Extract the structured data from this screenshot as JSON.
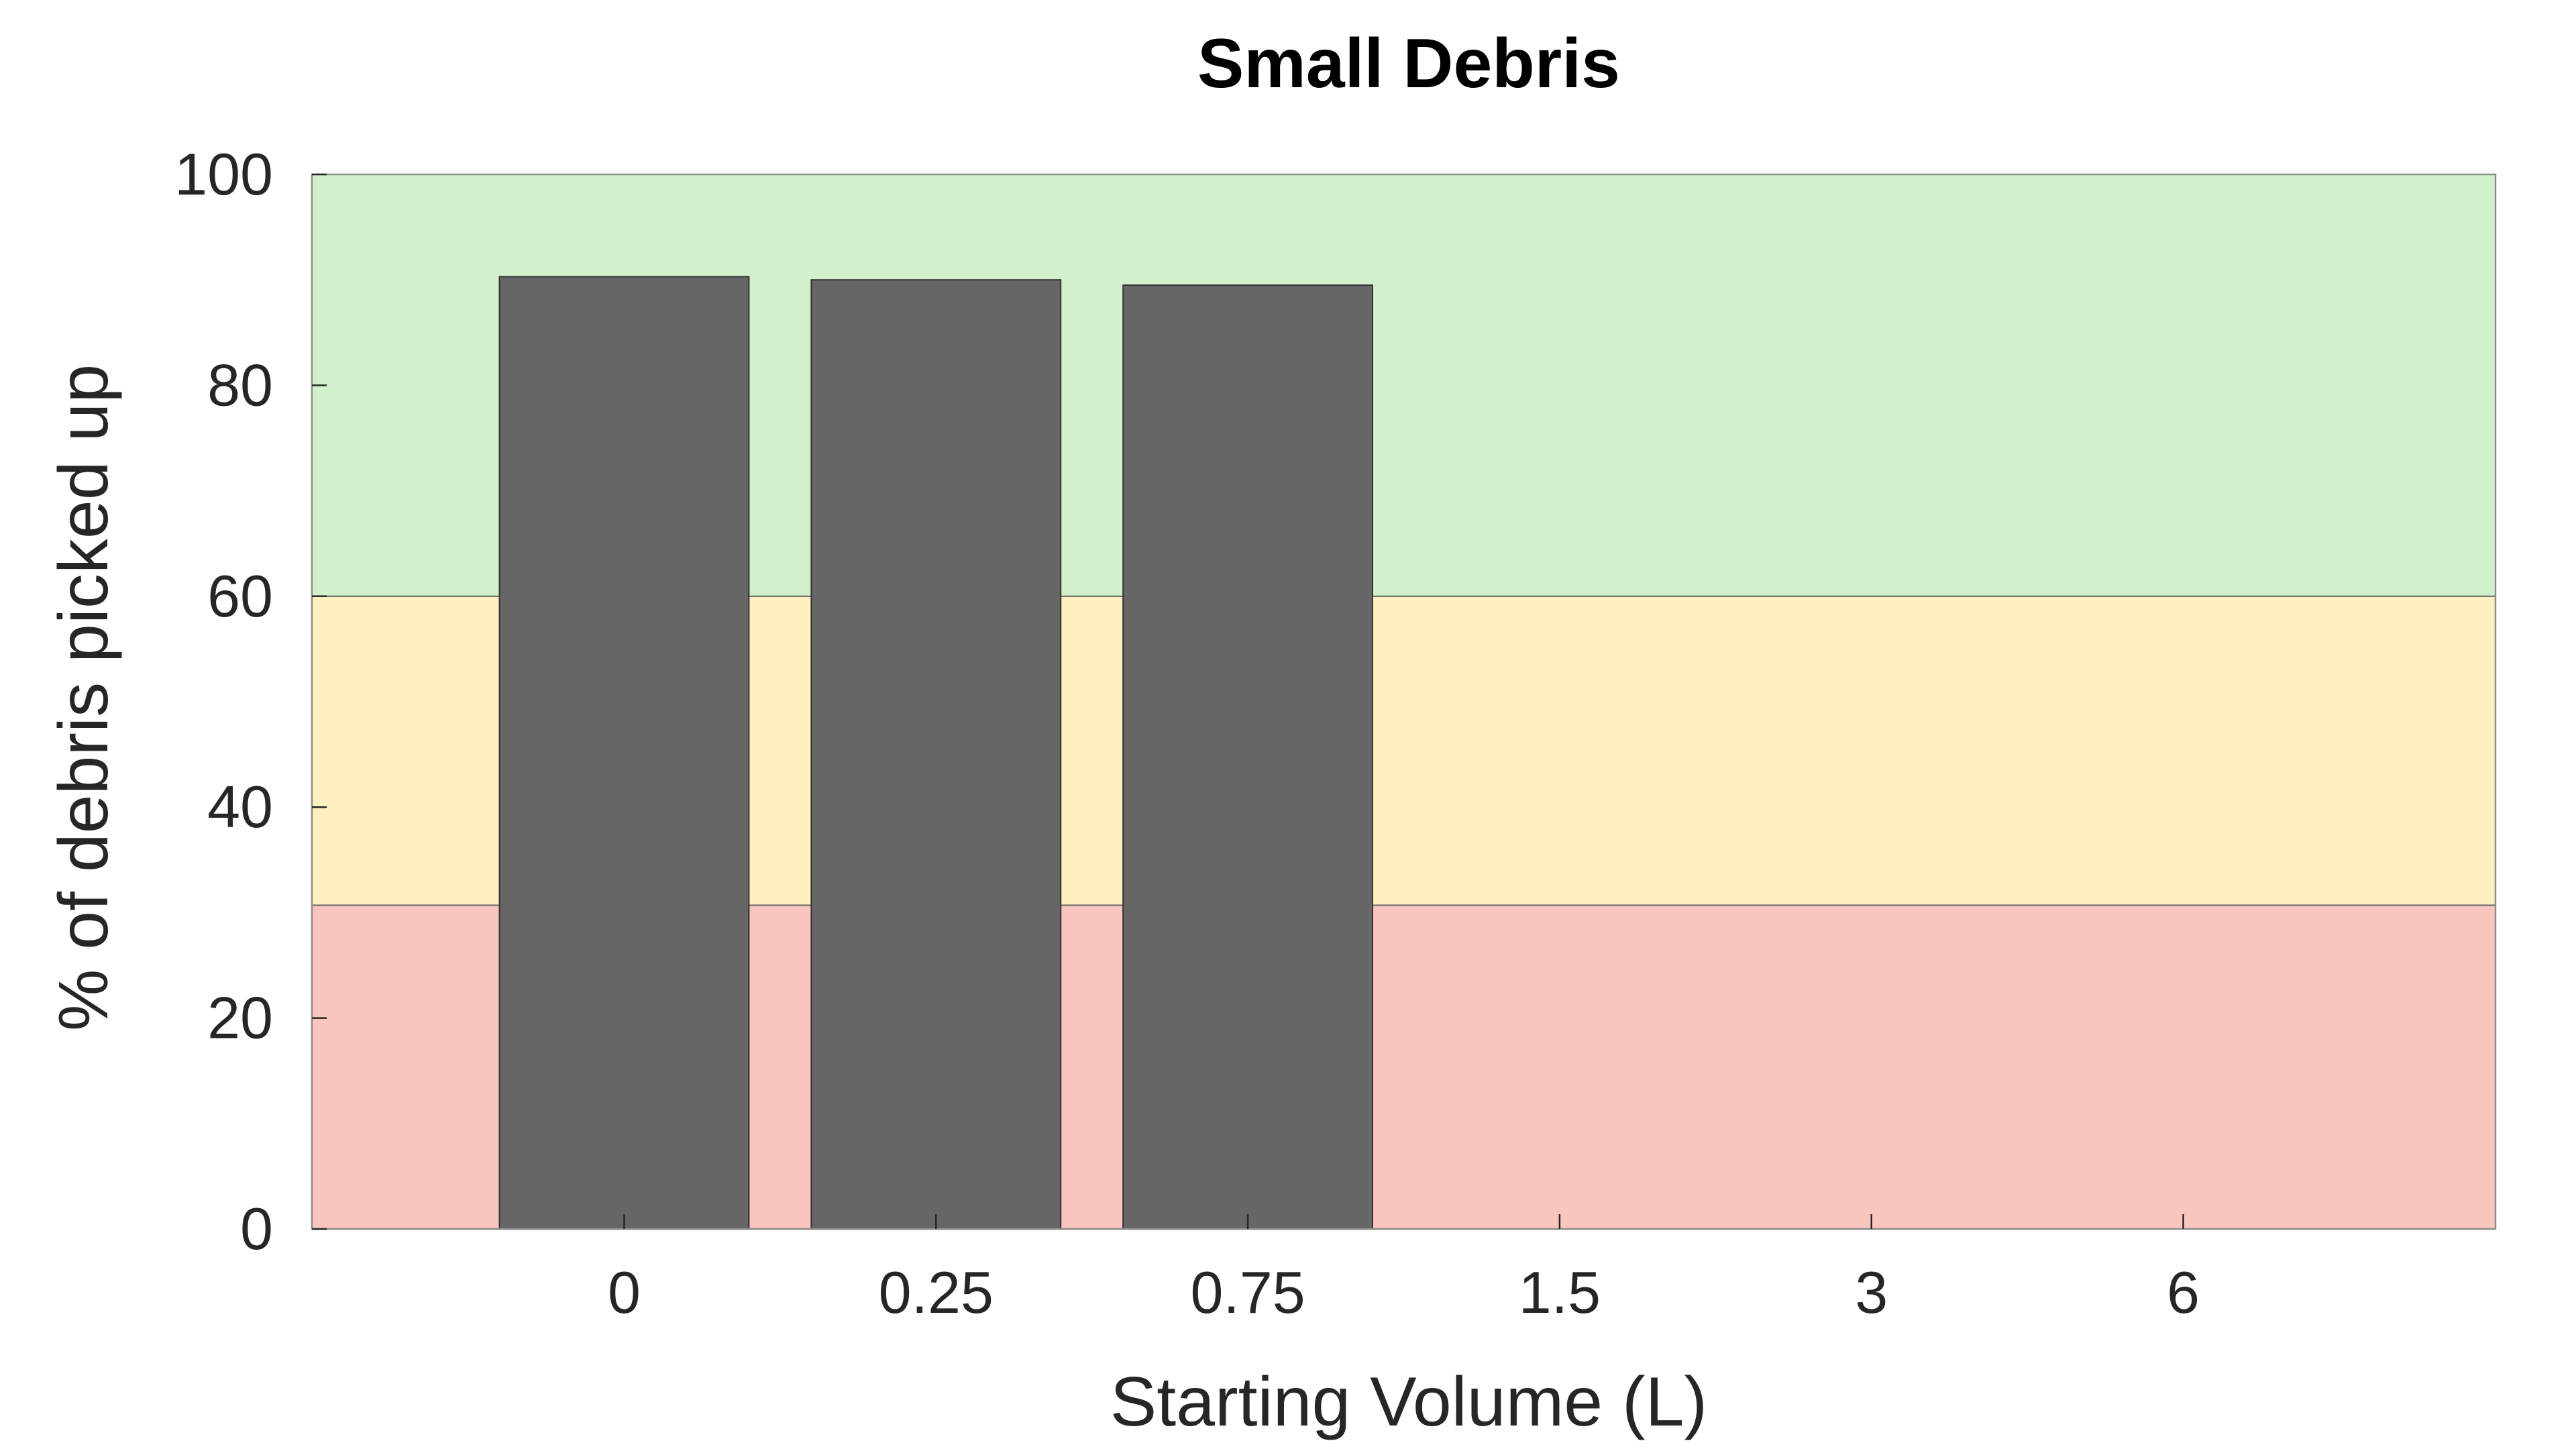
{
  "chart_data": {
    "type": "bar",
    "title": "Small Debris",
    "xlabel": "Starting Volume (L)",
    "ylabel": "% of debris picked up",
    "categories": [
      "0",
      "0.25",
      "0.75",
      "1.5",
      "3",
      "6"
    ],
    "values": [
      90.3,
      90.0,
      89.5,
      null,
      null,
      null
    ],
    "ylim": [
      0,
      100
    ],
    "yticks": [
      0,
      20,
      40,
      60,
      80,
      100
    ],
    "grid": false,
    "bar_color": "#666666",
    "bands": [
      {
        "from": 0,
        "to": 30.7,
        "color": "#fac5be"
      },
      {
        "from": 30.7,
        "to": 60,
        "color": "#fff0bf"
      },
      {
        "from": 60,
        "to": 100,
        "color": "#d3f0cc"
      }
    ]
  }
}
